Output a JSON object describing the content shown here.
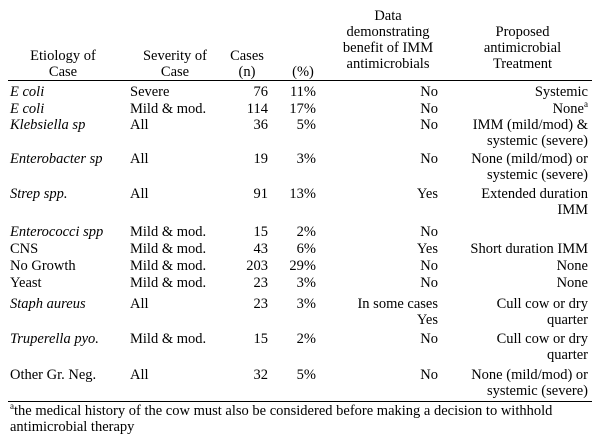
{
  "headers": {
    "etiology": [
      "Etiology of",
      "Case"
    ],
    "severity": [
      "Severity of",
      "Case"
    ],
    "cases": [
      "Cases",
      "(n)"
    ],
    "percent": "(%)",
    "data": [
      "Data",
      "demonstrating",
      "benefit of IMM",
      "antimicrobials"
    ],
    "treatment": [
      "Proposed",
      "antimicrobial",
      "Treatment"
    ]
  },
  "rows": [
    {
      "etiology": "E coli",
      "italic": true,
      "severity": "Severe",
      "n": "76",
      "pct": "11%",
      "data": [
        "No"
      ],
      "treatment": [
        "Systemic"
      ]
    },
    {
      "etiology": "E coli",
      "italic": true,
      "severity": "Mild & mod.",
      "n": "114",
      "pct": "17%",
      "data": [
        "No"
      ],
      "treatment": [
        "None"
      ],
      "treatment_sup": "a"
    },
    {
      "etiology": "Klebsiella sp",
      "italic": true,
      "severity": "All",
      "n": "36",
      "pct": "5%",
      "data": [
        "No"
      ],
      "treatment": [
        "IMM (mild/mod) &",
        "systemic (severe)"
      ]
    },
    {
      "etiology": "Enterobacter sp",
      "italic": true,
      "severity": "All",
      "n": "19",
      "pct": "3%",
      "data": [
        "No"
      ],
      "treatment": [
        "None (mild/mod) or",
        "systemic (severe)"
      ]
    },
    {
      "etiology": "Strep spp.",
      "italic": true,
      "severity": "All",
      "n": "91",
      "pct": "13%",
      "data": [
        "Yes"
      ],
      "treatment": [
        "Extended duration",
        "IMM"
      ]
    },
    {
      "etiology": "Enterococci spp",
      "italic": true,
      "severity": "Mild & mod.",
      "n": "15",
      "pct": "2%",
      "data": [
        "No"
      ],
      "treatment": [
        ""
      ]
    },
    {
      "etiology": "CNS",
      "italic": false,
      "severity": "Mild & mod.",
      "n": "43",
      "pct": "6%",
      "data": [
        "Yes"
      ],
      "treatment": [
        "Short duration IMM"
      ]
    },
    {
      "etiology": "No Growth",
      "italic": false,
      "severity": "Mild & mod.",
      "n": "203",
      "pct": "29%",
      "data": [
        "No"
      ],
      "treatment": [
        "None"
      ]
    },
    {
      "etiology": "Yeast",
      "italic": false,
      "severity": "Mild & mod.",
      "n": "23",
      "pct": "3%",
      "data": [
        "No"
      ],
      "treatment": [
        "None"
      ]
    },
    {
      "etiology": "Staph aureus",
      "italic": true,
      "severity": "All",
      "n": "23",
      "pct": "3%",
      "data": [
        "In some cases",
        "Yes"
      ],
      "treatment": [
        "Cull cow or dry",
        "quarter"
      ]
    },
    {
      "etiology": "Truperella pyo.",
      "italic": true,
      "severity": "Mild & mod.",
      "n": "15",
      "pct": "2%",
      "data": [
        "No"
      ],
      "treatment": [
        "Cull cow or dry",
        "quarter"
      ]
    },
    {
      "etiology": "Other Gr. Neg.",
      "italic": false,
      "severity": "All",
      "n": "32",
      "pct": "5%",
      "data": [
        "No"
      ],
      "treatment": [
        "None (mild/mod) or",
        "systemic (severe)"
      ]
    }
  ],
  "footnote": {
    "marker": "a",
    "text": "the medical history of the cow must also be considered before making a decision to withhold antimicrobial therapy"
  }
}
